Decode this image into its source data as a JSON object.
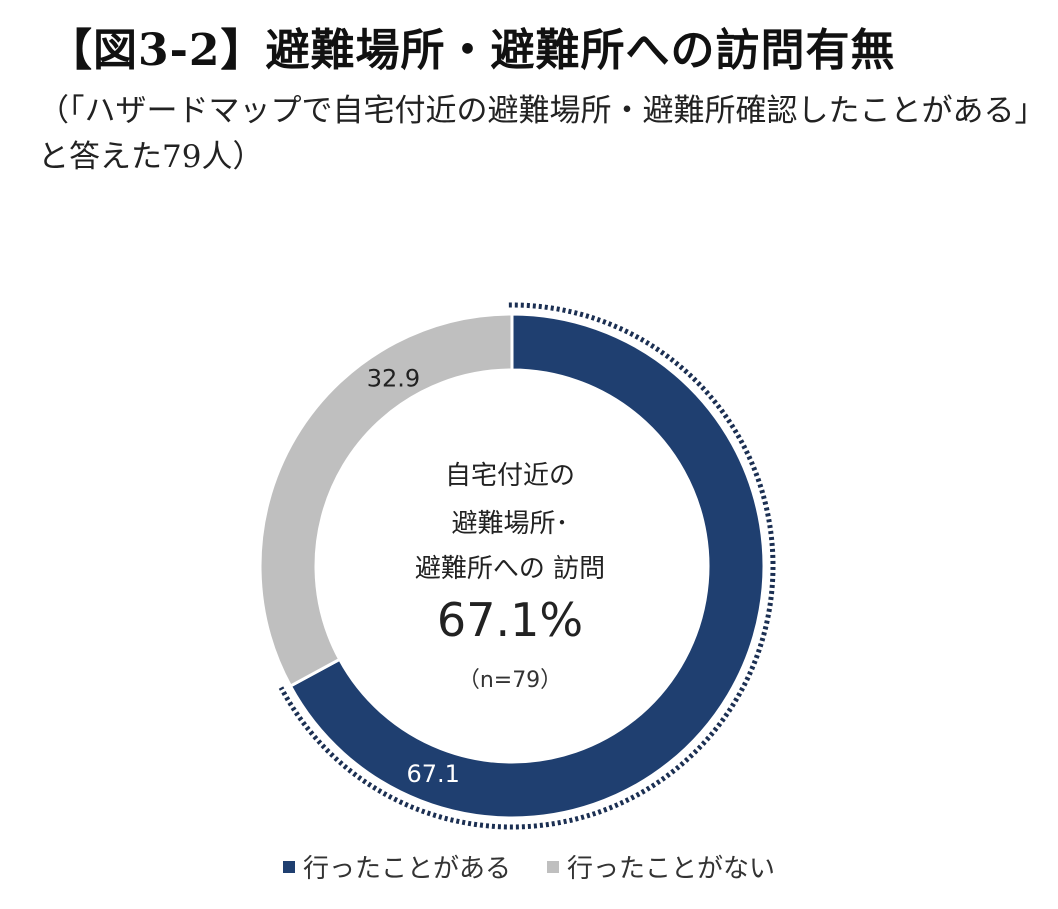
{
  "title": "【図3-2】避難場所・避難所への訪問有無",
  "subtitle": "（「ハザードマップで自宅付近の避難場所・避難所確認したことがある」と答えた79人）",
  "center": {
    "line1": "自宅付近の",
    "line2": "避難場所･",
    "line3": "避難所への 訪問",
    "percent": "67.1%",
    "n": "（n=79）"
  },
  "colors": {
    "visited": "#1f3f70",
    "not_visited": "#bfbfbf"
  },
  "chart_data": {
    "type": "pie",
    "style": "donut",
    "categories": [
      "行ったことがある",
      "行ったことがない"
    ],
    "values": [
      67.1,
      32.9
    ],
    "data_labels": [
      "67.1",
      "32.9"
    ],
    "legend_position": "bottom",
    "highlight": "行ったことがある"
  }
}
